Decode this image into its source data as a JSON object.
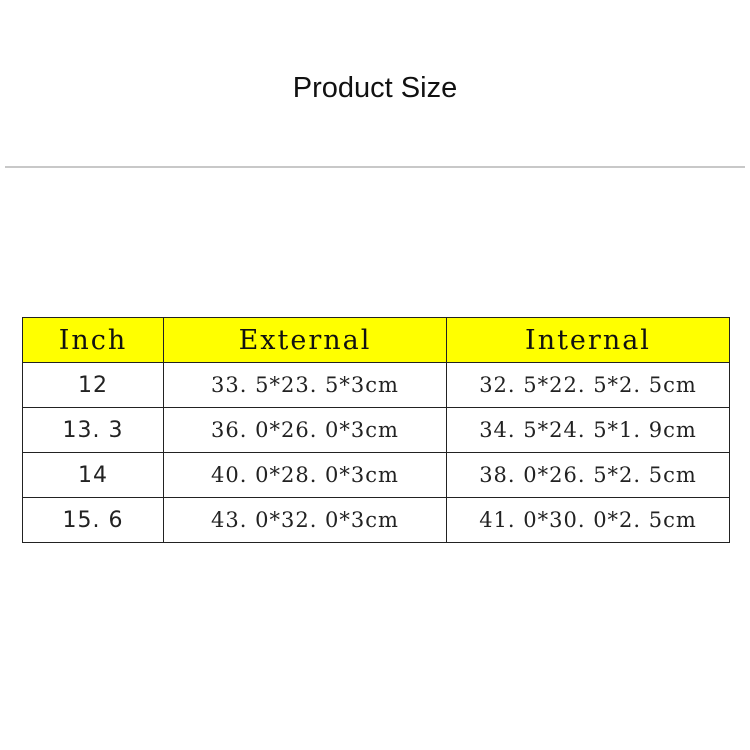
{
  "title": "Product Size",
  "table": {
    "headers": [
      "Inch",
      "External",
      "Internal"
    ],
    "header_color": "#ffff00",
    "rows": [
      [
        "12",
        "33. 5*23. 5*3cm",
        "32. 5*22. 5*2. 5cm"
      ],
      [
        "13. 3",
        "36. 0*26. 0*3cm",
        "34. 5*24. 5*1. 9cm"
      ],
      [
        "14",
        "40. 0*28. 0*3cm",
        "38. 0*26. 5*2. 5cm"
      ],
      [
        "15. 6",
        "43. 0*32. 0*3cm",
        "41. 0*30. 0*2. 5cm"
      ]
    ]
  }
}
